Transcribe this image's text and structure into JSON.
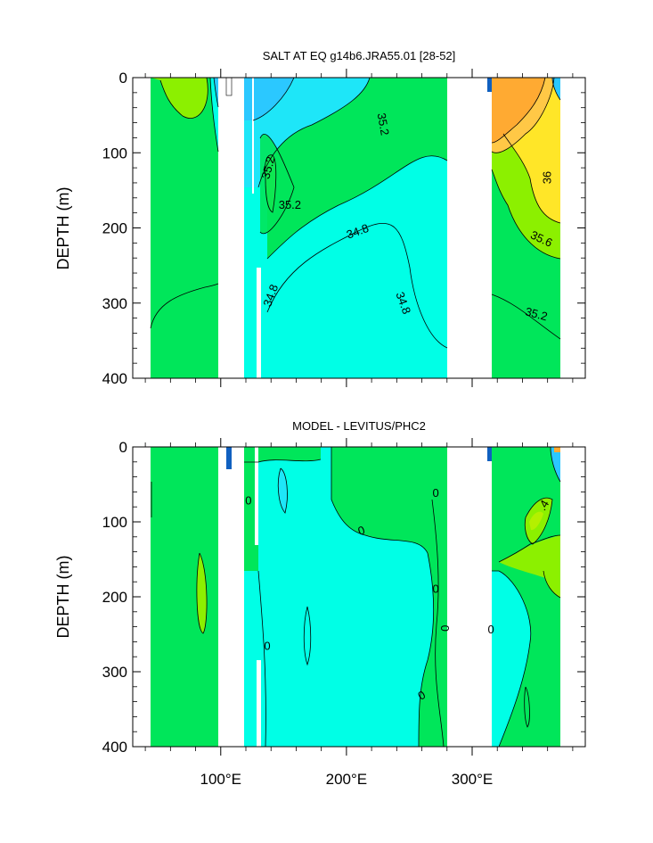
{
  "colors": {
    "cyan": "#00ffe6",
    "aqua": "#1ee6f8",
    "sky": "#2bc8ff",
    "deep_blue": "#1060c0",
    "green": "#00e65a",
    "lime": "#8cf000",
    "yellow_green": "#b4f000",
    "yellow": "#ffe628",
    "orange": "#ffaa32",
    "orange_light": "#ffc846",
    "white": "#ffffff"
  },
  "chart_data": [
    {
      "type": "heatmap",
      "subtype": "filled-contour depth section",
      "title": "SALT AT EQ g14b6.JRA55.01 [28-52]",
      "xlabel": "",
      "ylabel": "DEPTH (m)",
      "xlim": [
        30,
        390
      ],
      "ylim": [
        400,
        0
      ],
      "x_ticks": [
        100,
        200,
        300
      ],
      "x_tick_labels": [
        "100°E",
        "200°E",
        "300°E"
      ],
      "y_ticks": [
        0,
        100,
        200,
        300,
        400
      ],
      "y_tick_labels": [
        "0",
        "100",
        "200",
        "300",
        "400"
      ],
      "land_gaps_lon": [
        [
          97,
          117
        ],
        [
          127,
          130
        ],
        [
          278,
          313
        ],
        [
          370,
          390
        ]
      ],
      "contour_labels": [
        {
          "text": "35.2",
          "lon": 229,
          "depth": 62,
          "rot": 80
        },
        {
          "text": "35.2",
          "lon": 138,
          "depth": 120,
          "rot": -75
        },
        {
          "text": "35.2",
          "lon": 155,
          "depth": 170,
          "rot": 0
        },
        {
          "text": "34.8",
          "lon": 209,
          "depth": 205,
          "rot": -20
        },
        {
          "text": "34.8",
          "lon": 140,
          "depth": 290,
          "rot": -70
        },
        {
          "text": "34.8",
          "lon": 245,
          "depth": 300,
          "rot": 70
        },
        {
          "text": "36",
          "lon": 360,
          "depth": 133,
          "rot": -90
        },
        {
          "text": "35.6",
          "lon": 355,
          "depth": 215,
          "rot": 25
        },
        {
          "text": "35.2",
          "lon": 351,
          "depth": 315,
          "rot": 15
        }
      ]
    },
    {
      "type": "heatmap",
      "subtype": "filled-contour depth section (difference)",
      "title": "MODEL - LEVITUS/PHC2",
      "xlabel": "",
      "ylabel": "DEPTH (m)",
      "xlim": [
        30,
        390
      ],
      "ylim": [
        400,
        0
      ],
      "x_ticks": [
        100,
        200,
        300
      ],
      "x_tick_labels": [
        "100°E",
        "200°E",
        "300°E"
      ],
      "y_ticks": [
        0,
        100,
        200,
        300,
        400
      ],
      "y_tick_labels": [
        "0",
        "100",
        "200",
        "300",
        "400"
      ],
      "land_gaps_lon": [
        [
          97,
          117
        ],
        [
          127,
          130
        ],
        [
          278,
          313
        ],
        [
          370,
          390
        ]
      ],
      "contour_labels": [
        {
          "text": "0",
          "lon": 122,
          "depth": 72,
          "rot": 0
        },
        {
          "text": "0",
          "lon": 212,
          "depth": 112,
          "rot": -20
        },
        {
          "text": "0",
          "lon": 271,
          "depth": 62,
          "rot": 0
        },
        {
          "text": "0",
          "lon": 271,
          "depth": 190,
          "rot": 0
        },
        {
          "text": "0",
          "lon": 278,
          "depth": 242,
          "rot": 90
        },
        {
          "text": "0",
          "lon": 137,
          "depth": 266,
          "rot": 0
        },
        {
          "text": "0",
          "lon": 260,
          "depth": 332,
          "rot": -30
        },
        {
          "text": "0",
          "lon": 315,
          "depth": 244,
          "rot": 0
        },
        {
          "text": ".4",
          "lon": 357,
          "depth": 78,
          "rot": -60
        }
      ]
    }
  ]
}
